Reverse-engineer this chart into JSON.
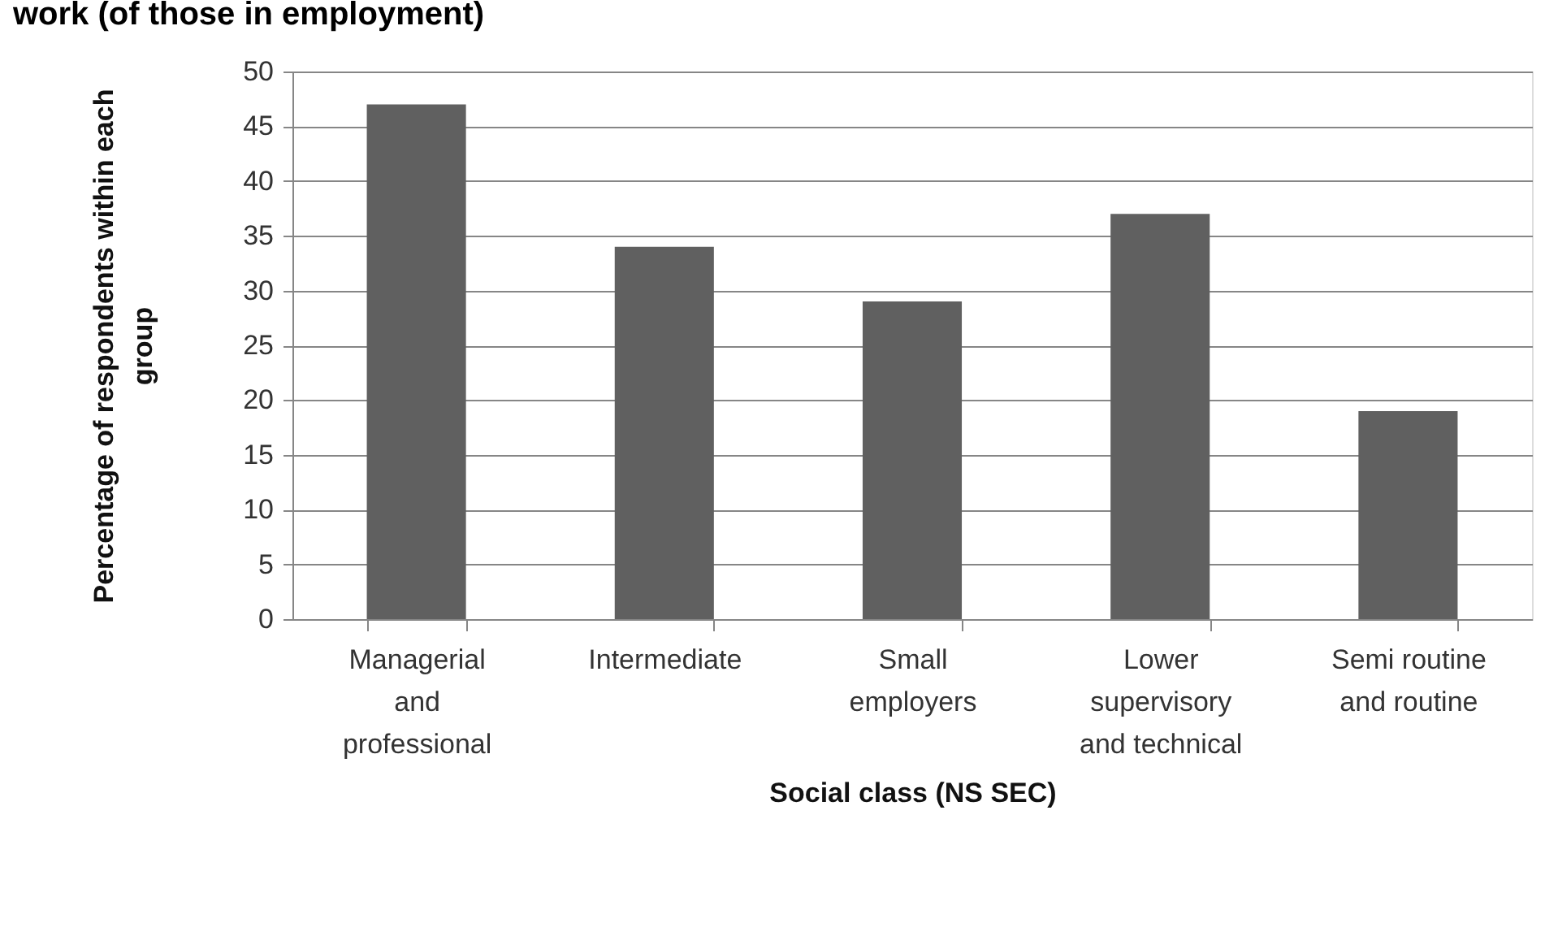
{
  "chart_data": {
    "type": "bar",
    "title": "work (of those in employment)",
    "categories": [
      "Managerial and professional",
      "Intermediate",
      "Small employers",
      "Lower supervisory and technical",
      "Semi routine and routine"
    ],
    "values": [
      47,
      34,
      29,
      37,
      19
    ],
    "color": "#606060",
    "xlabel": "Social class (NS SEC)",
    "ylabel": "Percentage of respondents within each group",
    "ylim": [
      0,
      50
    ],
    "yticks": [
      0,
      5,
      10,
      15,
      20,
      25,
      30,
      35,
      40,
      45,
      50
    ],
    "grid": "y"
  }
}
